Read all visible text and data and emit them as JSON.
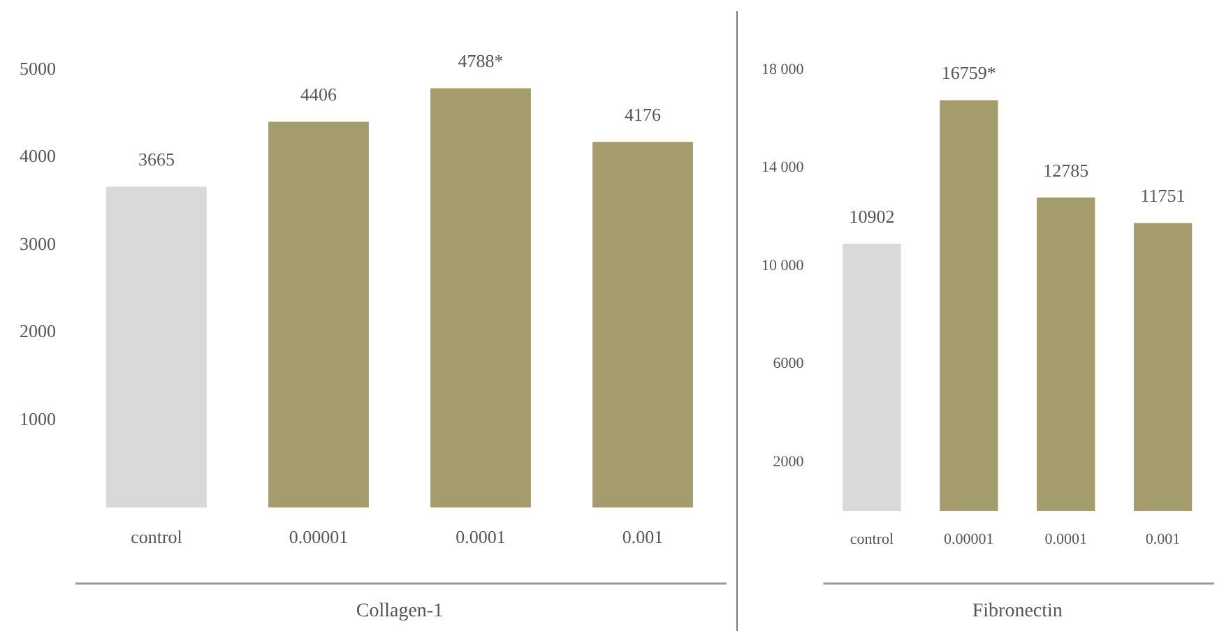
{
  "chart_data": [
    {
      "type": "bar",
      "xlabel": "Collagen-1",
      "categories": [
        "control",
        "0.00001",
        "0.0001",
        "0.001"
      ],
      "values": [
        3665,
        4406,
        4788,
        4176
      ],
      "colors": [
        "#d9d9d9",
        "#a59c6e",
        "#a59c6e",
        "#a59c6e"
      ],
      "value_labels": [
        "3665",
        "4406",
        "4788*",
        "4176"
      ],
      "ylim": [
        0,
        5000
      ],
      "yticks": [
        1000,
        2000,
        3000,
        4000,
        5000
      ]
    },
    {
      "type": "bar",
      "xlabel": "Fibronectin",
      "categories": [
        "control",
        "0.00001",
        "0.0001",
        "0.001"
      ],
      "values": [
        10902,
        16759,
        12785,
        11751
      ],
      "colors": [
        "#d9d9d9",
        "#a59c6e",
        "#a59c6e",
        "#a59c6e"
      ],
      "value_labels": [
        "10902",
        "16759*",
        "12785",
        "11751"
      ],
      "ylim": [
        0,
        18000
      ],
      "yticks": [
        {
          "value": 2000,
          "label": "2000"
        },
        {
          "value": 6000,
          "label": "6000"
        },
        {
          "value": 10000,
          "label": "10 000"
        },
        {
          "value": 14000,
          "label": "14 000"
        },
        {
          "value": 18000,
          "label": "18 000"
        }
      ]
    }
  ]
}
